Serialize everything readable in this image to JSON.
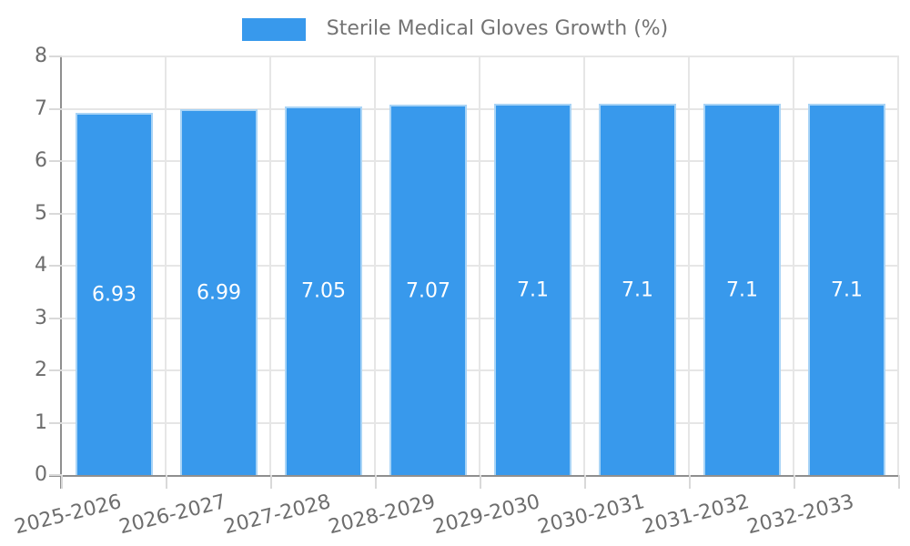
{
  "legend": {
    "label": "Sterile Medical Gloves Growth (%)"
  },
  "chart_data": {
    "type": "bar",
    "title": "Sterile Medical Gloves Growth (%)",
    "categories": [
      "2025-2026",
      "2026-2027",
      "2027-2028",
      "2028-2029",
      "2029-2030",
      "2030-2031",
      "2031-2032",
      "2032-2033"
    ],
    "values": [
      6.93,
      6.99,
      7.05,
      7.07,
      7.1,
      7.1,
      7.1,
      7.1
    ],
    "value_labels": [
      "6.93",
      "6.99",
      "7.05",
      "7.07",
      "7.1",
      "7.1",
      "7.1",
      "7.1"
    ],
    "xlabel": "",
    "ylabel": "",
    "ylim": [
      0,
      8
    ],
    "yticks": [
      0,
      1,
      2,
      3,
      4,
      5,
      6,
      7,
      8
    ],
    "grid": true,
    "legend_position": "top",
    "colors": {
      "bar_fill": "#3899ec",
      "bar_border": "#a9d4f6",
      "value_label": "#ffffff",
      "axis_line": "#8f8f8f",
      "grid_line": "#e6e6e6",
      "tick_mark": "#d9d9d9",
      "tick_label": "#6d6d6d",
      "legend_text": "#737373"
    },
    "x_label_rotation_deg": -14
  }
}
